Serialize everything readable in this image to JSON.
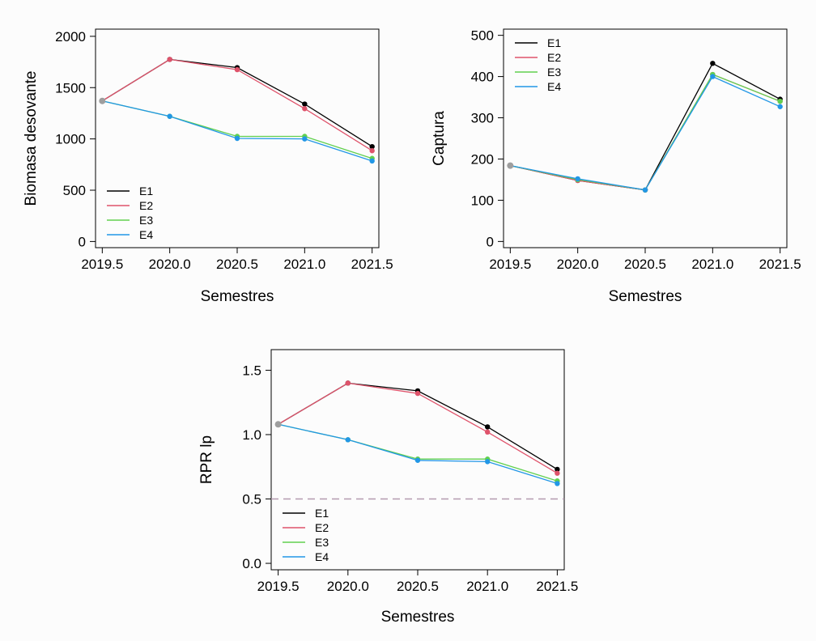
{
  "colors": {
    "E1": "#000000",
    "E2": "#DF536B",
    "E3": "#61D04F",
    "E4": "#2297E6",
    "start_point": "#9E9E9E",
    "reference_line": "#B39AAF",
    "background": "#FCFCFC"
  },
  "chart_data": [
    {
      "type": "line",
      "title": "",
      "xlabel": "Semestres",
      "ylabel": "Biomasa desovante",
      "x": [
        2019.5,
        2020.0,
        2020.5,
        2021.0,
        2021.5
      ],
      "x_ticks": [
        "2019.5",
        "2020.0",
        "2020.5",
        "2021.0",
        "2021.5"
      ],
      "xlim": [
        2019.45,
        2021.55
      ],
      "ylim": [
        -60,
        2070
      ],
      "y_ticks": [
        0,
        500,
        1000,
        1500,
        2000
      ],
      "legend": "bottom-left",
      "series": [
        {
          "name": "E1",
          "values": [
            1370,
            1775,
            1695,
            1340,
            925
          ]
        },
        {
          "name": "E2",
          "values": [
            1370,
            1775,
            1675,
            1295,
            885
          ]
        },
        {
          "name": "E3",
          "values": [
            1370,
            1220,
            1025,
            1025,
            810
          ]
        },
        {
          "name": "E4",
          "values": [
            1370,
            1220,
            1005,
            1000,
            785
          ]
        }
      ]
    },
    {
      "type": "line",
      "title": "",
      "xlabel": "Semestres",
      "ylabel": "Captura",
      "x": [
        2019.5,
        2020.0,
        2020.5,
        2021.0,
        2021.5
      ],
      "x_ticks": [
        "2019.5",
        "2020.0",
        "2020.5",
        "2021.0",
        "2021.5"
      ],
      "xlim": [
        2019.45,
        2021.55
      ],
      "ylim": [
        -15,
        515
      ],
      "y_ticks": [
        0,
        100,
        200,
        300,
        400,
        500
      ],
      "legend": "top-left",
      "series": [
        {
          "name": "E1",
          "values": [
            184,
            148,
            125,
            432,
            345
          ]
        },
        {
          "name": "E2",
          "values": [
            184,
            148,
            125,
            405,
            340
          ]
        },
        {
          "name": "E3",
          "values": [
            184,
            150,
            125,
            405,
            340
          ]
        },
        {
          "name": "E4",
          "values": [
            184,
            152,
            125,
            400,
            327
          ]
        }
      ]
    },
    {
      "type": "line",
      "title": "",
      "xlabel": "Semestres",
      "ylabel": "RPR lp",
      "x": [
        2019.5,
        2020.0,
        2020.5,
        2021.0,
        2021.5
      ],
      "x_ticks": [
        "2019.5",
        "2020.0",
        "2020.5",
        "2021.0",
        "2021.5"
      ],
      "xlim": [
        2019.45,
        2021.55
      ],
      "ylim": [
        -0.05,
        1.66
      ],
      "y_ticks": [
        "0.0",
        "0.5",
        "1.0",
        "1.5"
      ],
      "reference_line": 0.5,
      "legend": "bottom-left",
      "series": [
        {
          "name": "E1",
          "values": [
            1.08,
            1.4,
            1.34,
            1.06,
            0.73
          ]
        },
        {
          "name": "E2",
          "values": [
            1.08,
            1.4,
            1.32,
            1.02,
            0.7
          ]
        },
        {
          "name": "E3",
          "values": [
            1.08,
            0.96,
            0.81,
            0.81,
            0.64
          ]
        },
        {
          "name": "E4",
          "values": [
            1.08,
            0.96,
            0.8,
            0.79,
            0.62
          ]
        }
      ]
    }
  ]
}
